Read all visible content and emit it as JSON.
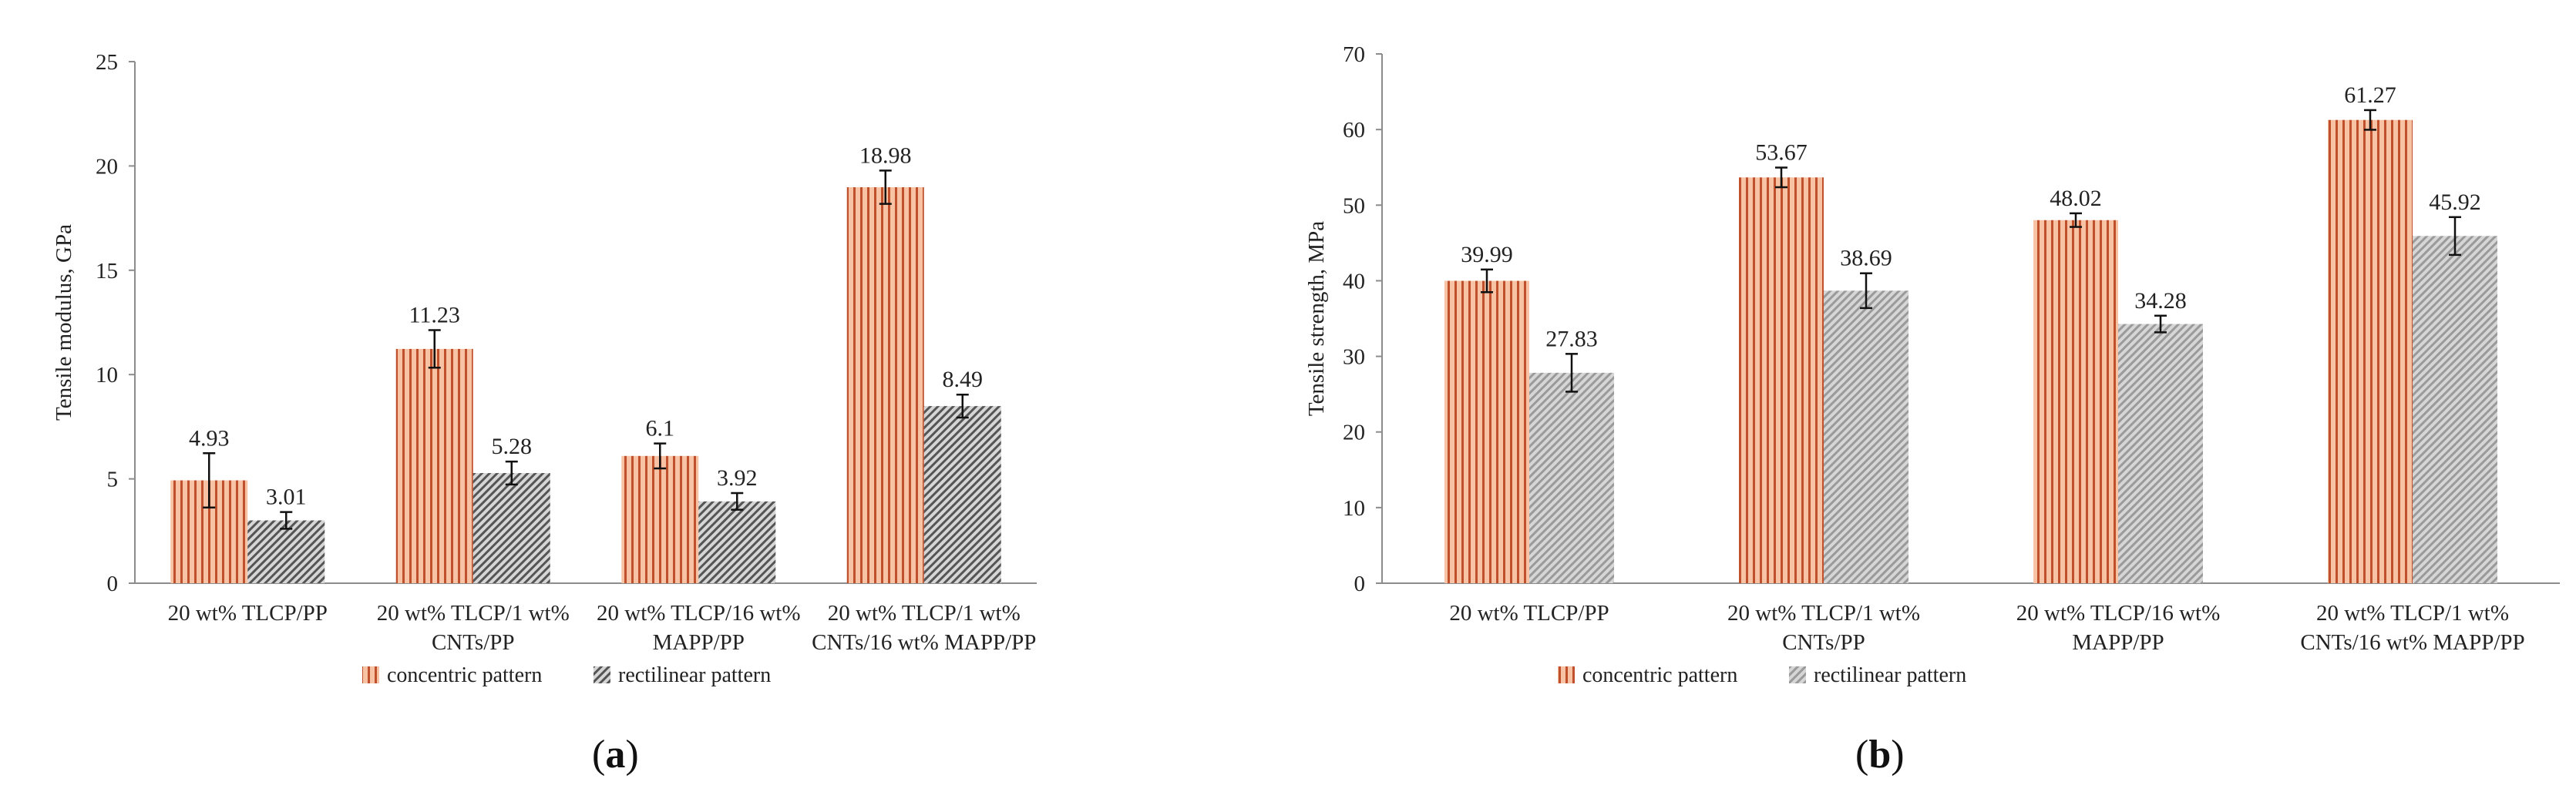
{
  "colors": {
    "concentric_fill": "#f7c3a4",
    "concentric_stripe": "#c0502b",
    "rectilinear_fill": "#d6d6d6",
    "rectilinear_stripe_a": "#555555",
    "rectilinear_stripe_b": "#9a9a9a",
    "axis": "#8c8c8c",
    "text": "#222222"
  },
  "chart_data": [
    {
      "id": "a",
      "type": "bar",
      "caption_open": "(",
      "caption_label": "a",
      "caption_close": ")",
      "ylabel": "Tensile modulus, GPa",
      "ylim": [
        0,
        25
      ],
      "yticks": [
        0,
        5,
        10,
        15,
        20,
        25
      ],
      "categories": [
        [
          "20 wt% TLCP/PP"
        ],
        [
          "20 wt% TLCP/1 wt%",
          "CNTs/PP"
        ],
        [
          "20 wt% TLCP/16 wt%",
          "MAPP/PP"
        ],
        [
          "20 wt% TLCP/1 wt%",
          "CNTs/16 wt% MAPP/PP"
        ]
      ],
      "series": [
        {
          "name": "concentric pattern",
          "values": [
            4.93,
            11.23,
            6.1,
            18.98
          ],
          "labels": [
            "4.93",
            "11.23",
            "6.1",
            "18.98"
          ],
          "errors": [
            1.3,
            0.9,
            0.6,
            0.8
          ]
        },
        {
          "name": "rectilinear pattern",
          "values": [
            3.01,
            5.28,
            3.92,
            8.49
          ],
          "labels": [
            "3.01",
            "5.28",
            "3.92",
            "8.49"
          ],
          "errors": [
            0.4,
            0.55,
            0.4,
            0.55
          ]
        }
      ],
      "legend": "bottom-center"
    },
    {
      "id": "b",
      "type": "bar",
      "caption_open": "(",
      "caption_label": "b",
      "caption_close": ")",
      "ylabel": "Tensile strength, MPa",
      "ylim": [
        0,
        70
      ],
      "yticks": [
        0,
        10,
        20,
        30,
        40,
        50,
        60,
        70
      ],
      "categories": [
        [
          "20 wt% TLCP/PP"
        ],
        [
          "20 wt% TLCP/1 wt%",
          "CNTs/PP"
        ],
        [
          "20 wt% TLCP/16 wt%",
          "MAPP/PP"
        ],
        [
          "20 wt% TLCP/1 wt%",
          "CNTs/16 wt% MAPP/PP"
        ]
      ],
      "series": [
        {
          "name": "concentric pattern",
          "values": [
            39.99,
            53.67,
            48.02,
            61.27
          ],
          "labels": [
            "39.99",
            "53.67",
            "48.02",
            "61.27"
          ],
          "errors": [
            1.5,
            1.3,
            0.9,
            1.3
          ]
        },
        {
          "name": "rectilinear pattern",
          "values": [
            27.83,
            38.69,
            34.28,
            45.92
          ],
          "labels": [
            "27.83",
            "38.69",
            "34.28",
            "45.92"
          ],
          "errors": [
            2.5,
            2.3,
            1.1,
            2.5
          ]
        }
      ],
      "legend": "bottom-center"
    }
  ]
}
